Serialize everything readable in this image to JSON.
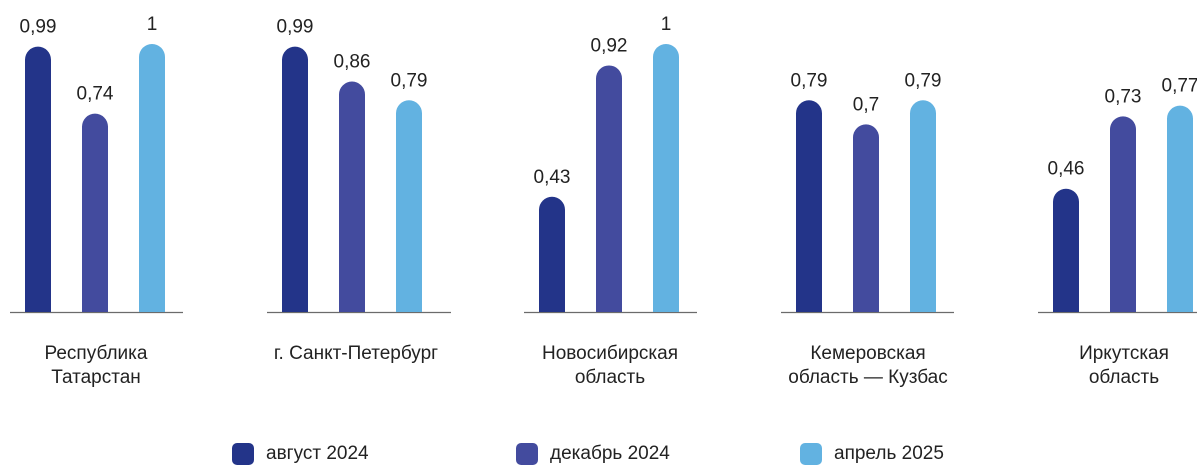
{
  "chart_data": {
    "type": "bar",
    "categories": [
      [
        "Республика",
        "Татарстан"
      ],
      [
        "г. Санкт-Петербург"
      ],
      [
        "Новосибирская",
        "область"
      ],
      [
        "Кемеровская",
        "область — Кузбас"
      ],
      [
        "Иркутская",
        "область"
      ]
    ],
    "series": [
      {
        "name": "август 2024",
        "color": "#233489",
        "values": [
          0.99,
          0.99,
          0.43,
          0.79,
          0.46
        ],
        "labels": [
          "0,99",
          "0,99",
          "0,43",
          "0,79",
          "0,46"
        ]
      },
      {
        "name": "декабрь 2024",
        "color": "#434b9e",
        "values": [
          0.74,
          0.86,
          0.92,
          0.7,
          0.73
        ],
        "labels": [
          "0,74",
          "0,86",
          "0,92",
          "0,7",
          "0,73"
        ]
      },
      {
        "name": "апрель 2025",
        "color": "#62b2e1",
        "values": [
          1,
          0.79,
          1,
          0.79,
          0.77
        ],
        "labels": [
          "1",
          "0,79",
          "1",
          "0,79",
          "0,77"
        ]
      }
    ],
    "ylim": [
      0,
      1
    ],
    "grid": false,
    "legend_position": "bottom"
  }
}
